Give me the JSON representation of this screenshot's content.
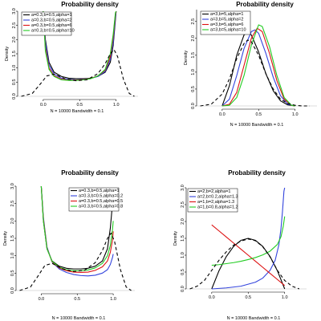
{
  "chart_data": [
    {
      "type": "line",
      "title": "Probability density",
      "xlabel": "N = 10000   Bandwidth = 0.1",
      "ylabel": "Density",
      "xticks": [
        "0.0",
        "0.5",
        "1.0"
      ],
      "yticks": [
        "0.0",
        "0.5",
        "1.0",
        "1.5",
        "2.0",
        "2.5",
        "3.0"
      ],
      "xlim": [
        -0.35,
        1.3
      ],
      "ylim": [
        0,
        3.0
      ],
      "legend_position": "top-left",
      "series": [
        {
          "name": "a=0.3,b=0.5,alpha=1",
          "color": "#000000",
          "dash": "none",
          "x": [
            0.0,
            0.03,
            0.08,
            0.15,
            0.25,
            0.35,
            0.45,
            0.55,
            0.65,
            0.75,
            0.85,
            0.92,
            0.96,
            0.99,
            1.0
          ],
          "y": [
            3.0,
            2.0,
            1.2,
            0.85,
            0.7,
            0.64,
            0.62,
            0.62,
            0.64,
            0.7,
            0.85,
            1.2,
            1.8,
            2.7,
            3.0
          ]
        },
        {
          "name": "a=0.3,b=0.5,alpha=2",
          "color": "#3344dd",
          "dash": "none",
          "x": [
            0.0,
            0.03,
            0.08,
            0.15,
            0.25,
            0.35,
            0.45,
            0.55,
            0.65,
            0.75,
            0.85,
            0.92,
            0.96,
            0.99,
            1.0
          ],
          "y": [
            3.0,
            1.9,
            1.1,
            0.78,
            0.64,
            0.6,
            0.58,
            0.6,
            0.63,
            0.7,
            0.88,
            1.3,
            1.9,
            2.8,
            3.0
          ]
        },
        {
          "name": "a=0.3,b=0.5,alpha=6",
          "color": "#dd1111",
          "dash": "none",
          "x": [
            0.0,
            0.03,
            0.08,
            0.15,
            0.25,
            0.35,
            0.45,
            0.55,
            0.65,
            0.75,
            0.85,
            0.92,
            0.96,
            0.99,
            1.0
          ],
          "y": [
            3.0,
            1.7,
            1.0,
            0.72,
            0.6,
            0.57,
            0.57,
            0.59,
            0.63,
            0.72,
            0.92,
            1.4,
            2.1,
            2.9,
            3.0
          ]
        },
        {
          "name": "a=0.3,b=0.5,alpha=10",
          "color": "#22cc22",
          "dash": "none",
          "x": [
            0.0,
            0.03,
            0.08,
            0.15,
            0.25,
            0.35,
            0.45,
            0.55,
            0.65,
            0.75,
            0.85,
            0.92,
            0.96,
            0.99,
            1.0
          ],
          "y": [
            3.0,
            1.6,
            0.95,
            0.7,
            0.58,
            0.56,
            0.56,
            0.58,
            0.62,
            0.72,
            0.95,
            1.5,
            2.2,
            2.95,
            3.0
          ]
        },
        {
          "name": "",
          "color": "#000000",
          "dash": "4,3",
          "x": [
            -0.3,
            -0.15,
            -0.05,
            0.05,
            0.15,
            0.3,
            0.45,
            0.6,
            0.75,
            0.85,
            0.92,
            0.97,
            1.02,
            1.1,
            1.18,
            1.25
          ],
          "y": [
            0.0,
            0.1,
            0.4,
            0.72,
            0.78,
            0.62,
            0.55,
            0.58,
            0.8,
            1.15,
            1.5,
            1.65,
            1.4,
            0.6,
            0.1,
            0.0
          ]
        }
      ]
    },
    {
      "type": "line",
      "title": "Probability density",
      "xlabel": "N = 10000   Bandwidth = 0.1",
      "ylabel": "Density",
      "xticks": [
        "0.0",
        "0.5",
        "1.0"
      ],
      "yticks": [
        "0.0",
        "0.5",
        "1.0",
        "1.5",
        "2.0",
        "2.5"
      ],
      "xlim": [
        -0.35,
        1.3
      ],
      "ylim": [
        0,
        2.85
      ],
      "legend_position": "top-left",
      "series": [
        {
          "name": "a=3,b=5,alpha=1",
          "color": "#000000",
          "dash": "none",
          "x": [
            0.0,
            0.1,
            0.2,
            0.3,
            0.35,
            0.4,
            0.5,
            0.6,
            0.7,
            0.8,
            0.9,
            1.0
          ],
          "y": [
            0.0,
            0.6,
            1.5,
            2.1,
            2.2,
            2.1,
            1.6,
            0.95,
            0.45,
            0.15,
            0.03,
            0.0
          ]
        },
        {
          "name": "a=3,b=5,alpha=2",
          "color": "#3344dd",
          "dash": "none",
          "x": [
            0.0,
            0.1,
            0.2,
            0.3,
            0.4,
            0.45,
            0.5,
            0.6,
            0.7,
            0.8,
            0.9,
            1.0
          ],
          "y": [
            0.0,
            0.2,
            0.9,
            1.7,
            2.2,
            2.25,
            2.15,
            1.55,
            0.85,
            0.3,
            0.05,
            0.0
          ]
        },
        {
          "name": "a=3,b=5,alpha=6",
          "color": "#dd1111",
          "dash": "none",
          "x": [
            0.0,
            0.1,
            0.2,
            0.3,
            0.4,
            0.48,
            0.55,
            0.65,
            0.75,
            0.85,
            0.95,
            1.0
          ],
          "y": [
            0.0,
            0.05,
            0.4,
            1.2,
            2.0,
            2.3,
            2.2,
            1.55,
            0.75,
            0.2,
            0.02,
            0.0
          ]
        },
        {
          "name": "a=3,b=5,alpha=10",
          "color": "#22cc22",
          "dash": "none",
          "x": [
            0.0,
            0.1,
            0.2,
            0.3,
            0.4,
            0.5,
            0.55,
            0.65,
            0.75,
            0.85,
            0.95,
            1.0
          ],
          "y": [
            0.0,
            0.02,
            0.25,
            0.9,
            1.8,
            2.4,
            2.35,
            1.75,
            0.9,
            0.25,
            0.02,
            0.0
          ]
        },
        {
          "name": "",
          "color": "#000000",
          "dash": "4,3",
          "x": [
            -0.3,
            -0.15,
            0.0,
            0.1,
            0.2,
            0.3,
            0.35,
            0.4,
            0.5,
            0.6,
            0.7,
            0.8,
            0.9,
            1.0,
            1.1,
            1.2
          ],
          "y": [
            0.0,
            0.05,
            0.35,
            0.8,
            1.4,
            1.85,
            1.95,
            1.9,
            1.5,
            0.95,
            0.5,
            0.2,
            0.07,
            0.02,
            0.0,
            0.0
          ]
        }
      ]
    },
    {
      "type": "line",
      "title": "Probability density",
      "xlabel": "N = 10000   Bandwidth = 0.1",
      "ylabel": "Density",
      "xticks": [
        "0.0",
        "0.5",
        "1.0"
      ],
      "yticks": [
        "0.0",
        "0.5",
        "1.0",
        "1.5",
        "2.0",
        "2.5",
        "3.0"
      ],
      "xlim": [
        -0.35,
        1.3
      ],
      "ylim": [
        0,
        3.0
      ],
      "legend_position": "top-right",
      "series": [
        {
          "name": "a=0.3,b=0.5,alpha=1",
          "color": "#000000",
          "dash": "none",
          "x": [
            0.0,
            0.03,
            0.08,
            0.15,
            0.25,
            0.35,
            0.45,
            0.55,
            0.65,
            0.75,
            0.85,
            0.92,
            0.96,
            0.99,
            1.0
          ],
          "y": [
            3.0,
            2.0,
            1.2,
            0.85,
            0.7,
            0.64,
            0.62,
            0.62,
            0.64,
            0.7,
            0.85,
            1.2,
            1.8,
            2.5,
            2.9
          ]
        },
        {
          "name": "a=0.3,b=0.5,alpha=0.2",
          "color": "#3344dd",
          "dash": "none",
          "x": [
            0.0,
            0.03,
            0.08,
            0.15,
            0.25,
            0.35,
            0.45,
            0.55,
            0.65,
            0.75,
            0.85,
            0.92,
            0.96,
            0.99,
            1.0
          ],
          "y": [
            3.0,
            2.1,
            1.25,
            0.82,
            0.62,
            0.52,
            0.46,
            0.43,
            0.42,
            0.44,
            0.5,
            0.6,
            0.75,
            0.95,
            1.05
          ]
        },
        {
          "name": "a=0.3,b=0.5,alpha=0.5",
          "color": "#dd1111",
          "dash": "none",
          "x": [
            0.0,
            0.03,
            0.08,
            0.15,
            0.25,
            0.35,
            0.45,
            0.55,
            0.65,
            0.75,
            0.85,
            0.92,
            0.96,
            0.99,
            1.0
          ],
          "y": [
            3.0,
            2.05,
            1.22,
            0.83,
            0.65,
            0.57,
            0.53,
            0.52,
            0.53,
            0.58,
            0.68,
            0.85,
            1.1,
            1.45,
            1.7
          ]
        },
        {
          "name": "a=0.3,b=0.5,alpha=0.8",
          "color": "#22cc22",
          "dash": "none",
          "x": [
            0.0,
            0.03,
            0.08,
            0.15,
            0.25,
            0.35,
            0.45,
            0.55,
            0.65,
            0.75,
            0.85,
            0.92,
            0.96,
            0.99,
            1.0
          ],
          "y": [
            3.0,
            2.0,
            1.2,
            0.84,
            0.67,
            0.6,
            0.57,
            0.57,
            0.59,
            0.65,
            0.78,
            1.0,
            1.3,
            1.75,
            2.0
          ]
        },
        {
          "name": "",
          "color": "#000000",
          "dash": "4,3",
          "x": [
            -0.3,
            -0.15,
            -0.05,
            0.05,
            0.15,
            0.3,
            0.45,
            0.6,
            0.75,
            0.85,
            0.92,
            0.97,
            1.02,
            1.1,
            1.18,
            1.25
          ],
          "y": [
            0.0,
            0.1,
            0.4,
            0.72,
            0.78,
            0.62,
            0.55,
            0.58,
            0.8,
            1.15,
            1.5,
            1.65,
            1.4,
            0.6,
            0.1,
            0.0
          ]
        }
      ]
    },
    {
      "type": "line",
      "title": "Probability density",
      "xlabel": "N = 10000   Bandwidth = 0.1",
      "ylabel": "Density",
      "xticks": [
        "0.0",
        "0.5",
        "1.0"
      ],
      "yticks": [
        "0.0",
        "0.5",
        "1.0",
        "1.5",
        "2.0",
        "2.5",
        "3.0"
      ],
      "xlim": [
        -0.35,
        1.3
      ],
      "ylim": [
        0,
        3.0
      ],
      "legend_position": "top-left",
      "series": [
        {
          "name": "a=2,b=2,alpha=1",
          "color": "#000000",
          "dash": "none",
          "x": [
            0.0,
            0.1,
            0.2,
            0.3,
            0.4,
            0.5,
            0.6,
            0.7,
            0.8,
            0.9,
            1.0
          ],
          "y": [
            0.0,
            0.54,
            0.96,
            1.26,
            1.44,
            1.5,
            1.44,
            1.26,
            0.96,
            0.54,
            0.0
          ]
        },
        {
          "name": "a=2,b=0.2,alpha=1.3",
          "color": "#3344dd",
          "dash": "none",
          "x": [
            0.0,
            0.2,
            0.4,
            0.6,
            0.7,
            0.8,
            0.87,
            0.92,
            0.95,
            0.97,
            0.98,
            0.99,
            1.0
          ],
          "y": [
            0.0,
            0.03,
            0.08,
            0.2,
            0.32,
            0.55,
            0.85,
            1.3,
            1.8,
            2.3,
            2.6,
            2.9,
            3.0
          ]
        },
        {
          "name": "a=1,b=2,alpha=1.3",
          "color": "#dd1111",
          "dash": "none",
          "x": [
            0.0,
            0.1,
            0.2,
            0.3,
            0.4,
            0.5,
            0.6,
            0.7,
            0.8,
            0.9,
            1.0
          ],
          "y": [
            1.9,
            1.72,
            1.54,
            1.36,
            1.18,
            1.0,
            0.82,
            0.64,
            0.46,
            0.28,
            0.1
          ]
        },
        {
          "name": "a=1,b=0.8,alpha=1.2",
          "color": "#22cc22",
          "dash": "none",
          "x": [
            0.0,
            0.1,
            0.2,
            0.3,
            0.4,
            0.5,
            0.6,
            0.7,
            0.8,
            0.9,
            0.95,
            0.98,
            1.0
          ],
          "y": [
            0.7,
            0.72,
            0.75,
            0.78,
            0.82,
            0.87,
            0.93,
            1.01,
            1.12,
            1.32,
            1.55,
            1.85,
            2.15
          ]
        },
        {
          "name": "",
          "color": "#000000",
          "dash": "4,3",
          "x": [
            -0.3,
            -0.2,
            -0.1,
            0.0,
            0.1,
            0.2,
            0.3,
            0.4,
            0.5,
            0.6,
            0.7,
            0.8,
            0.9,
            1.0,
            1.1,
            1.2
          ],
          "y": [
            0.0,
            0.08,
            0.25,
            0.55,
            0.85,
            1.1,
            1.3,
            1.42,
            1.48,
            1.43,
            1.25,
            0.95,
            0.55,
            0.25,
            0.08,
            0.0
          ]
        }
      ]
    }
  ]
}
